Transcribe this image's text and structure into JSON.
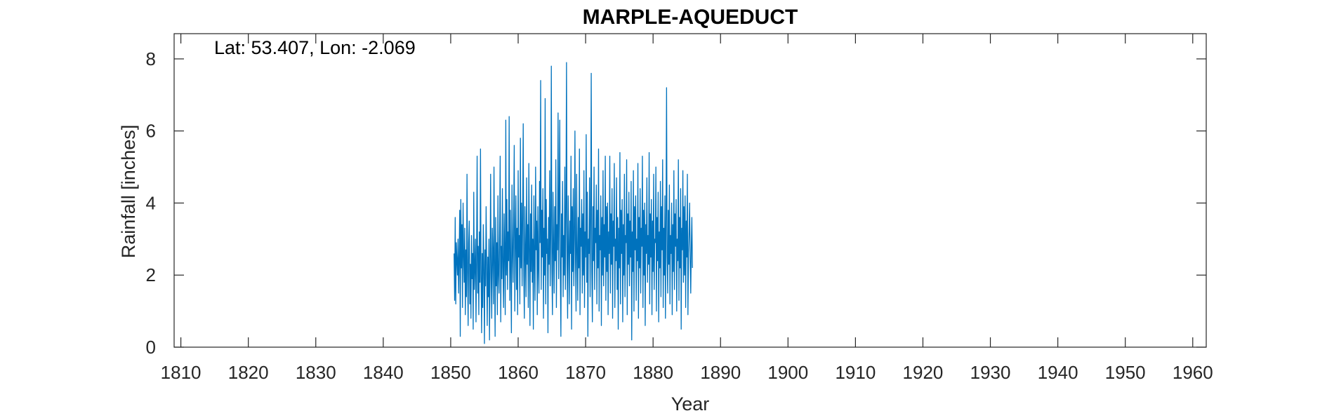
{
  "chart_data": {
    "type": "line",
    "title": "MARPLE-AQUEDUCT",
    "xlabel": "Year",
    "ylabel": "Rainfall [inches]",
    "annotation": "Lat: 53.407, Lon: -2.069",
    "xlim": [
      1809,
      1962
    ],
    "ylim": [
      0,
      8.7
    ],
    "x_ticks": [
      1810,
      1820,
      1830,
      1840,
      1850,
      1860,
      1870,
      1880,
      1890,
      1900,
      1910,
      1920,
      1930,
      1940,
      1950,
      1960
    ],
    "x_tick_labels": [
      "1810",
      "1820",
      "1830",
      "1840",
      "1850",
      "1860",
      "1870",
      "1880",
      "1890",
      "1900",
      "1910",
      "1920",
      "1930",
      "1940",
      "1950",
      "1960"
    ],
    "y_ticks": [
      0,
      2,
      4,
      6,
      8
    ],
    "y_tick_labels": [
      "0",
      "2",
      "4",
      "6",
      "8"
    ],
    "grid": false,
    "series_color": "#0072BD",
    "series": [
      {
        "name": "",
        "x_start": 1850.5,
        "x_step_months": 1,
        "values": [
          2.6,
          1.3,
          3.6,
          1.2,
          2.9,
          2.4,
          2.0,
          3.0,
          1.5,
          2.5,
          3.8,
          0.3,
          4.1,
          2.2,
          3.4,
          1.1,
          4.0,
          2.6,
          1.8,
          3.3,
          0.9,
          2.7,
          1.4,
          4.8,
          2.1,
          0.6,
          2.9,
          3.5,
          1.2,
          2.3,
          0.8,
          3.1,
          1.9,
          2.6,
          0.5,
          4.3,
          1.6,
          2.2,
          3.0,
          0.7,
          2.4,
          5.3,
          1.5,
          2.8,
          0.9,
          3.2,
          1.8,
          5.5,
          2.0,
          0.4,
          2.6,
          1.1,
          3.4,
          2.3,
          0.1,
          2.7,
          1.7,
          3.9,
          2.2,
          0.6,
          2.5,
          1.4,
          3.0,
          0.2,
          2.1,
          4.8,
          1.9,
          0.8,
          3.3,
          2.6,
          1.2,
          5.0,
          2.3,
          0.3,
          3.6,
          1.7,
          2.9,
          0.9,
          4.2,
          2.0,
          1.5,
          3.1,
          5.3,
          0.7,
          2.8,
          1.9,
          4.4,
          2.2,
          1.1,
          3.7,
          2.6,
          0.9,
          6.3,
          2.0,
          4.1,
          1.6,
          3.2,
          2.4,
          6.4,
          1.3,
          3.8,
          2.1,
          0.4,
          4.5,
          2.7,
          1.8,
          3.5,
          5.6,
          1.0,
          2.9,
          4.2,
          1.6,
          3.3,
          0.9,
          4.9,
          2.5,
          3.1,
          1.2,
          5.8,
          2.2,
          4.0,
          1.7,
          3.6,
          6.2,
          2.0,
          0.8,
          3.9,
          2.6,
          1.4,
          4.7,
          2.3,
          3.4,
          1.1,
          5.1,
          2.8,
          0.6,
          3.7,
          2.1,
          4.5,
          1.8,
          3.0,
          0.5,
          4.2,
          2.4,
          1.3,
          5.0,
          2.7,
          3.5,
          0.9,
          3.9,
          2.2,
          1.5,
          4.6,
          2.9,
          7.4,
          1.6,
          3.8,
          2.5,
          4.4,
          0.8,
          3.3,
          2.0,
          6.9,
          1.2,
          4.1,
          2.6,
          3.0,
          0.4,
          3.6,
          2.3,
          4.9,
          1.7,
          3.2,
          7.8,
          2.1,
          0.9,
          4.3,
          2.8,
          1.5,
          3.9,
          2.4,
          5.2,
          1.1,
          3.4,
          2.7,
          6.5,
          1.9,
          4.0,
          6.3,
          2.2,
          0.3,
          3.7,
          2.5,
          4.6,
          1.4,
          3.1,
          2.0,
          5.0,
          1.6,
          3.8,
          7.9,
          2.3,
          0.8,
          4.2,
          2.9,
          1.2,
          3.5,
          2.6,
          5.3,
          0.5,
          3.9,
          2.1,
          4.4,
          1.7,
          3.0,
          6.0,
          2.4,
          1.0,
          4.8,
          2.7,
          1.3,
          3.6,
          2.2,
          5.5,
          0.9,
          3.3,
          2.8,
          4.1,
          1.5,
          3.7,
          2.0,
          4.9,
          1.1,
          3.2,
          2.5,
          5.9,
          1.8,
          4.3,
          0.3,
          3.0,
          2.6,
          4.7,
          1.4,
          3.5,
          7.6,
          2.1,
          0.7,
          3.9,
          2.4,
          5.0,
          1.6,
          3.3,
          2.9,
          4.5,
          1.2,
          3.8,
          2.2,
          5.5,
          1.0,
          3.1,
          2.7,
          4.2,
          0.6,
          3.6,
          2.0,
          4.9,
          1.7,
          3.4,
          2.5,
          5.3,
          1.3,
          3.9,
          2.1,
          4.0,
          0.9,
          3.2,
          2.6,
          5.3,
          1.5,
          3.7,
          2.3,
          4.4,
          0.8,
          3.5,
          2.8,
          5.1,
          1.1,
          3.0,
          2.4,
          4.7,
          1.6,
          3.6,
          0.5,
          3.3,
          2.2,
          5.4,
          1.2,
          3.8,
          2.6,
          4.1,
          0.7,
          3.4,
          2.0,
          4.8,
          1.4,
          3.1,
          2.9,
          5.2,
          0.9,
          3.7,
          2.3,
          4.3,
          1.7,
          3.5,
          2.5,
          4.6,
          0.2,
          3.2,
          2.1,
          4.9,
          1.0,
          3.9,
          2.7,
          4.2,
          1.3,
          3.0,
          2.4,
          5.1,
          0.8,
          3.6,
          2.2,
          4.4,
          1.5,
          3.3,
          2.8,
          5.3,
          1.1,
          3.8,
          2.0,
          4.0,
          0.6,
          3.4,
          2.6,
          4.7,
          1.8,
          3.1,
          2.3,
          5.4,
          1.2,
          3.7,
          2.5,
          4.1,
          0.9,
          3.5,
          2.1,
          4.8,
          1.6,
          3.0,
          2.9,
          5.0,
          1.0,
          3.6,
          2.4,
          4.3,
          0.7,
          3.2,
          2.2,
          4.6,
          1.4,
          3.9,
          2.7,
          5.2,
          1.1,
          3.3,
          2.0,
          4.2,
          0.8,
          3.5,
          7.2,
          2.5,
          1.5,
          3.8,
          2.3,
          4.5,
          1.2,
          3.1,
          2.6,
          4.0,
          0.9,
          3.4,
          2.1,
          4.9,
          1.6,
          3.7,
          2.8,
          4.1,
          1.0,
          3.0,
          2.4,
          5.2,
          1.3,
          3.6,
          2.2,
          4.4,
          0.5,
          3.3,
          2.7,
          4.9,
          1.8,
          3.9,
          2.0,
          4.2,
          1.1,
          3.5,
          2.5,
          4.8,
          0.9,
          2.6,
          3.2,
          4.0,
          2.4,
          1.5,
          2.8,
          3.6,
          2.2
        ]
      }
    ]
  }
}
